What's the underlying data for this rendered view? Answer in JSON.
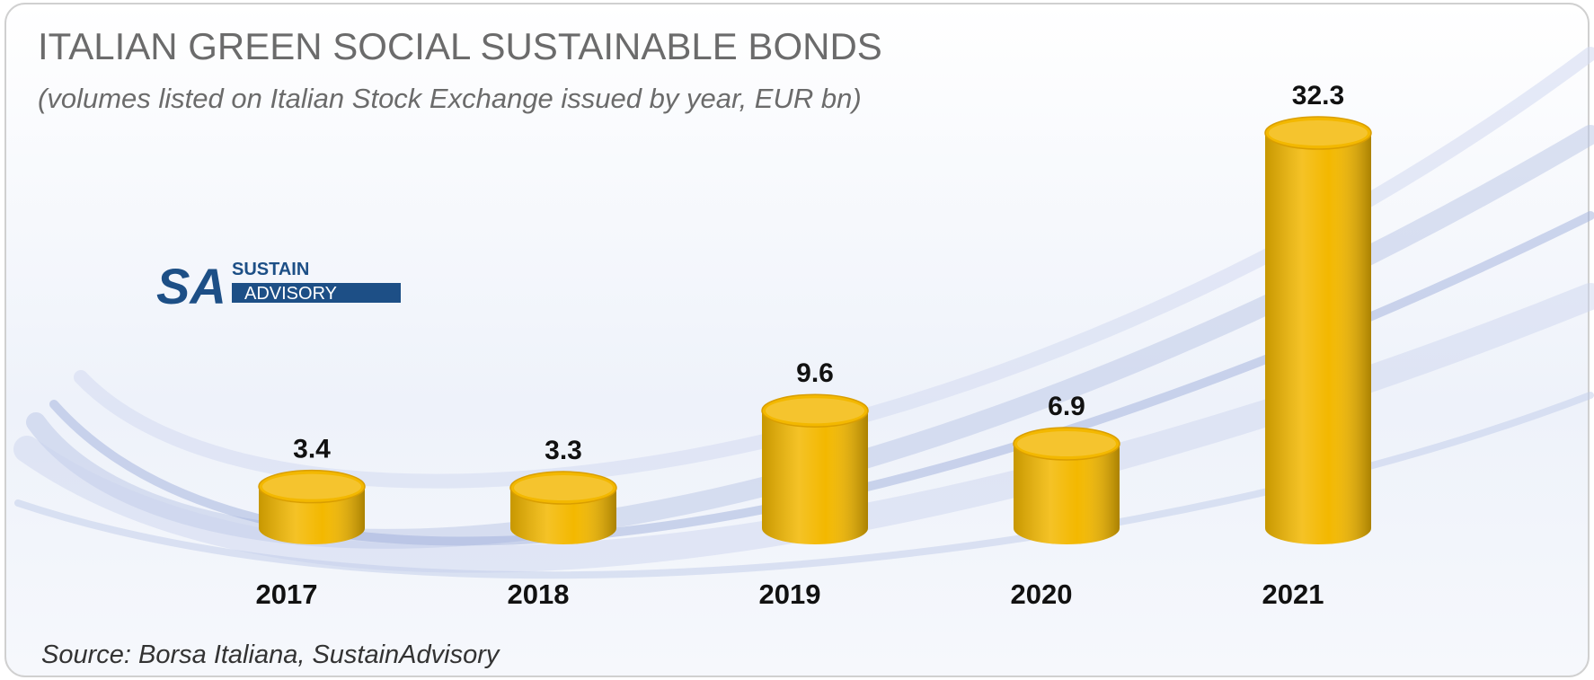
{
  "chart_data": {
    "type": "bar3d",
    "title": "ITALIAN GREEN SOCIAL SUSTAINABLE BONDS",
    "subtitle": "(volumes listed on Italian Stock Exchange issued by year, EUR bn)",
    "source": "Source: Borsa Italiana, SustainAdvisory",
    "categories": [
      "2017",
      "2018",
      "2019",
      "2020",
      "2021"
    ],
    "values": [
      3.4,
      3.3,
      9.6,
      6.9,
      32.3
    ],
    "color": "#f3b800"
  },
  "logo": {
    "mark": "SA",
    "line1": "SUSTAIN",
    "line2": "ADVISORY"
  }
}
